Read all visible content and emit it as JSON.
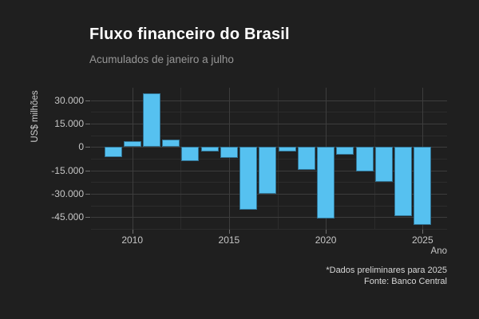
{
  "header": {
    "title": "Fluxo financeiro do Brasil",
    "subtitle": "Acumulados de janeiro a julho"
  },
  "chart_data": {
    "type": "bar",
    "title": "Fluxo financeiro do Brasil",
    "subtitle": "Acumulados de janeiro a julho",
    "xlabel": "Ano",
    "ylabel": "US$ milhões",
    "categories": [
      2009,
      2010,
      2011,
      2012,
      2013,
      2014,
      2015,
      2016,
      2017,
      2018,
      2019,
      2020,
      2021,
      2022,
      2023,
      2024,
      2025
    ],
    "values": [
      -6300,
      4000,
      34200,
      5000,
      -9200,
      -2900,
      -6900,
      -40000,
      -30100,
      -3100,
      -14500,
      -45800,
      -5000,
      -15700,
      -22500,
      -44200,
      -50100
    ],
    "ylim": [
      -54300,
      38400
    ],
    "y_major_ticks": [
      {
        "value": 30000,
        "label": "30.000"
      },
      {
        "value": 15000,
        "label": "15.000"
      },
      {
        "value": 0,
        "label": "0"
      },
      {
        "value": -15000,
        "label": "-15.000"
      },
      {
        "value": -30000,
        "label": "-30.000"
      },
      {
        "value": -45000,
        "label": "-45.000"
      }
    ],
    "y_minor_tick_values": [
      22500,
      7500,
      -7500,
      -22500,
      -37500,
      -52500
    ],
    "x_major_ticks": [
      {
        "value": 2010,
        "label": "2010"
      },
      {
        "value": 2015,
        "label": "2015"
      },
      {
        "value": 2020,
        "label": "2020"
      },
      {
        "value": 2025,
        "label": "2025"
      }
    ],
    "x_minor_tick_values": [
      2012.5,
      2017.5,
      2022.5
    ],
    "grid": "major+minor horizontal and vertical",
    "legend": "none",
    "bar_color": "#56c1f0",
    "background_color": "#1f1f1f"
  },
  "caption": {
    "line1": "*Dados preliminares para 2025",
    "line2": "Fonte: Banco Central"
  }
}
